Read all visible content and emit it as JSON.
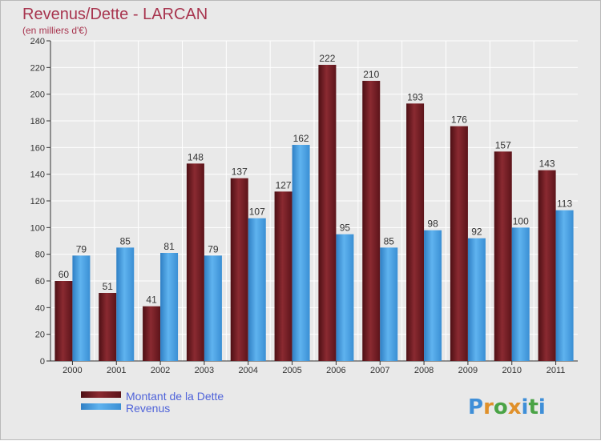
{
  "title": "Revenus/Dette - LARCAN",
  "subtitle": "(en milliers d'€)",
  "logo": "Proxiti",
  "colors": {
    "dette": "#7a1f26",
    "revenus": "#4ea4e6",
    "title": "#a8354f",
    "legend_text": "#4f63d9",
    "background": "#e9e9e9"
  },
  "chart_data": {
    "type": "bar",
    "categories": [
      "2000",
      "2001",
      "2002",
      "2003",
      "2004",
      "2005",
      "2006",
      "2007",
      "2008",
      "2009",
      "2010",
      "2011"
    ],
    "series": [
      {
        "name": "Montant de la Dette",
        "values": [
          60,
          51,
          41,
          148,
          137,
          127,
          222,
          210,
          193,
          176,
          157,
          143
        ]
      },
      {
        "name": "Revenus",
        "values": [
          79,
          85,
          81,
          79,
          107,
          162,
          95,
          85,
          98,
          92,
          100,
          113
        ]
      }
    ],
    "ylim": [
      0,
      240
    ],
    "yticks": [
      0,
      20,
      40,
      60,
      80,
      100,
      120,
      140,
      160,
      180,
      200,
      220,
      240
    ],
    "grid": true,
    "legend_position": "bottom-left"
  }
}
